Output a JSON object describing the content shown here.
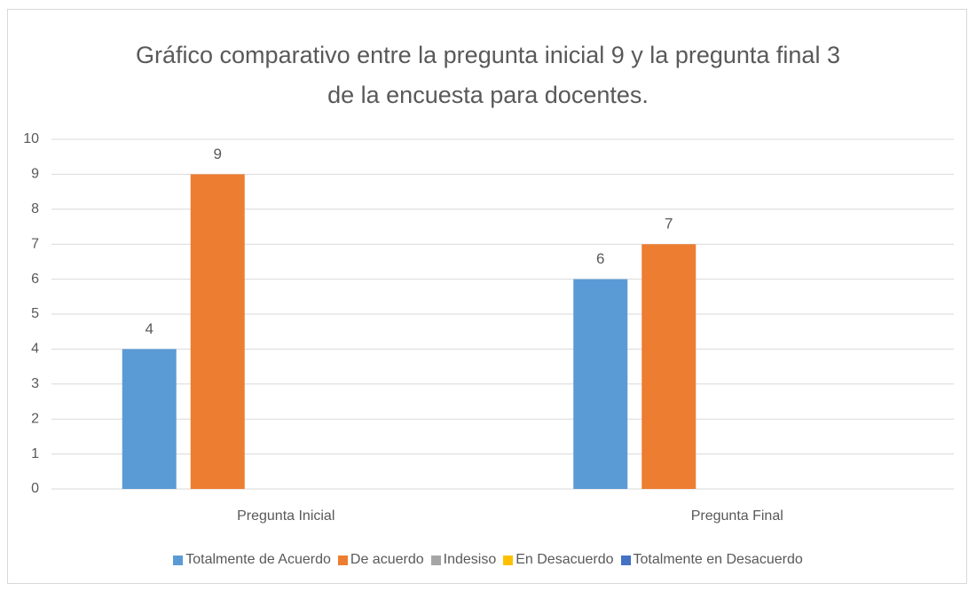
{
  "chart_data": {
    "type": "bar",
    "title": "Gráfico comparativo entre la pregunta inicial 9 y la pregunta final 3 de la encuesta para docentes.",
    "categories": [
      "Pregunta Inicial",
      "Pregunta Final"
    ],
    "series": [
      {
        "name": "Totalmente de Acuerdo",
        "color": "#5b9bd5",
        "values": [
          4,
          6
        ]
      },
      {
        "name": "De acuerdo",
        "color": "#ed7d31",
        "values": [
          9,
          7
        ]
      },
      {
        "name": "Indesiso",
        "color": "#a5a5a5",
        "values": [
          null,
          null
        ]
      },
      {
        "name": "En Desacuerdo",
        "color": "#ffc000",
        "values": [
          null,
          null
        ]
      },
      {
        "name": "Totalmente en Desacuerdo",
        "color": "#4472c4",
        "values": [
          null,
          null
        ]
      }
    ],
    "ylim": [
      0,
      10
    ],
    "yticks": [
      0,
      1,
      2,
      3,
      4,
      5,
      6,
      7,
      8,
      9,
      10
    ],
    "grid": true,
    "legend": "bottom"
  }
}
